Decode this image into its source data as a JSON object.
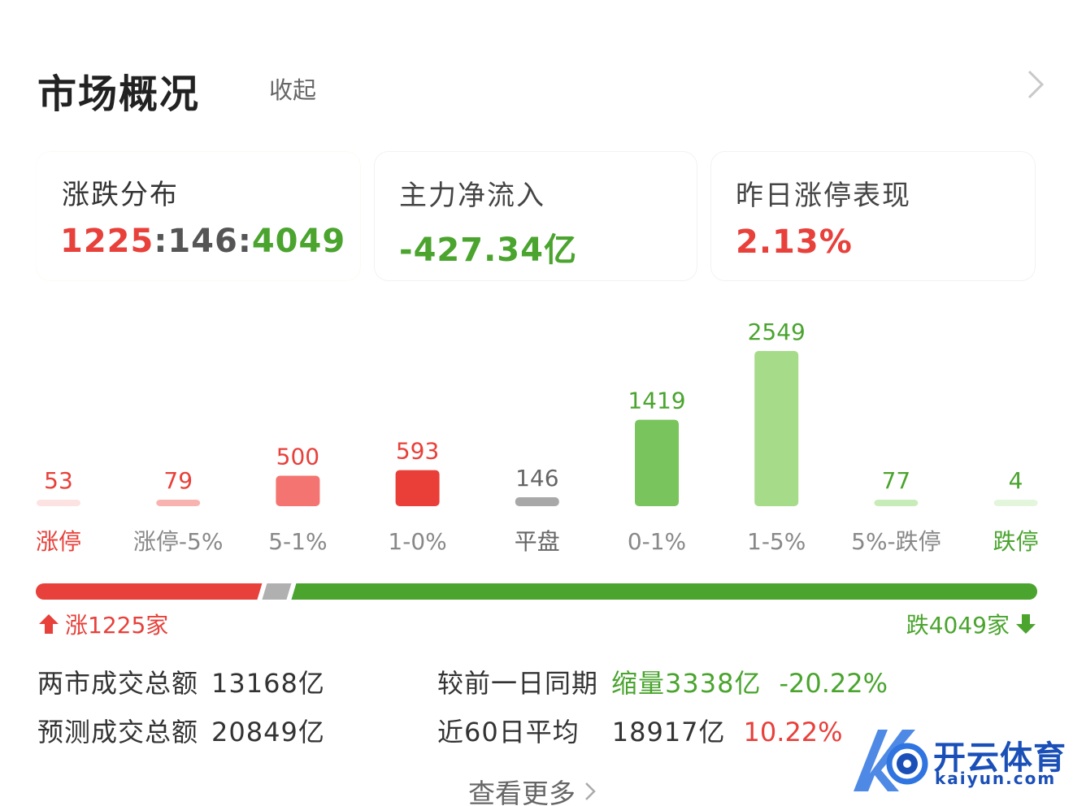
{
  "header": {
    "title": "市场概况",
    "collapse_label": "收起"
  },
  "cards": [
    {
      "label": "涨跌分布",
      "up": "1225",
      "sep1": ":",
      "flat": "146",
      "sep2": ":",
      "down": "4049"
    },
    {
      "label": "主力净流入",
      "value": "-427.34亿"
    },
    {
      "label": "昨日涨停表现",
      "value": "2.13%"
    }
  ],
  "chart_data": {
    "type": "bar",
    "categories": [
      "涨停",
      "涨停-5%",
      "5-1%",
      "1-0%",
      "平盘",
      "0-1%",
      "1-5%",
      "5%-跌停",
      "跌停"
    ],
    "values": [
      53,
      79,
      500,
      593,
      146,
      1419,
      2549,
      77,
      4
    ],
    "colors": [
      "#fce2e1",
      "#f8b3b0",
      "#f37470",
      "#ea3f39",
      "#a8a8a8",
      "#79c45c",
      "#a6db8a",
      "#c8ecb8",
      "#e3f5db"
    ],
    "label_colors": [
      "#e8403a",
      "#e8403a",
      "#e8403a",
      "#e8403a",
      "#666666",
      "#4aa42e",
      "#4aa42e",
      "#4aa42e",
      "#4aa42e"
    ],
    "category_colors": [
      "#e8403a",
      "#888888",
      "#888888",
      "#888888",
      "#666666",
      "#888888",
      "#888888",
      "#888888",
      "#4aa42e"
    ]
  },
  "summary": {
    "up_label": "涨1225家",
    "down_label": "跌4049家",
    "up_count": 1225,
    "flat_count": 146,
    "down_count": 4049,
    "up_color": "#e8403a",
    "flat_color": "#b0b0b0",
    "down_color": "#4aa42e"
  },
  "stats": {
    "turnover_label": "两市成交总额",
    "turnover_value": "13168亿",
    "forecast_label": "预测成交总额",
    "forecast_value": "20849亿",
    "compare_label": "较前一日同期",
    "compare_value": "缩量3338亿",
    "compare_pct": "-20.22%",
    "avg_label": "近60日平均",
    "avg_value": "18917亿",
    "avg_pct": "10.22%"
  },
  "more_label": "查看更多",
  "watermark": {
    "brand": "开云体育",
    "domain": "kaiyun.com"
  }
}
